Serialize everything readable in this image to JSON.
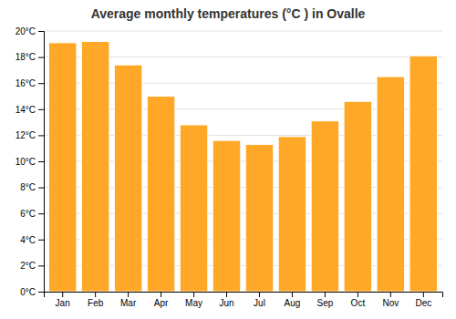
{
  "chart_data": {
    "type": "bar",
    "title": "Average monthly temperatures (°C ) in Ovalle",
    "categories": [
      "Jan",
      "Feb",
      "Mar",
      "Apr",
      "May",
      "Jun",
      "Jul",
      "Aug",
      "Sep",
      "Oct",
      "Nov",
      "Dec"
    ],
    "values": [
      19.1,
      19.2,
      17.4,
      15.0,
      12.8,
      11.6,
      11.3,
      11.9,
      13.1,
      14.6,
      16.5,
      18.1
    ],
    "color": "#FFA726",
    "ylim": [
      0,
      20
    ],
    "yticks": [
      {
        "value": 0,
        "label": "0°C"
      },
      {
        "value": 2,
        "label": "2°C"
      },
      {
        "value": 4,
        "label": "4°C"
      },
      {
        "value": 6,
        "label": "6°C"
      },
      {
        "value": 8,
        "label": "8°C"
      },
      {
        "value": 10,
        "label": "10°C"
      },
      {
        "value": 12,
        "label": "12°C"
      },
      {
        "value": 14,
        "label": "14°C"
      },
      {
        "value": 16,
        "label": "16°C"
      },
      {
        "value": 18,
        "label": "18°C"
      },
      {
        "value": 20,
        "label": "20°C"
      }
    ],
    "grid": true
  }
}
